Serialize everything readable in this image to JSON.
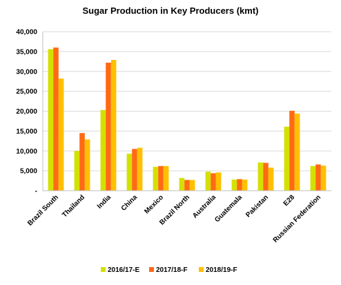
{
  "chart_data": {
    "type": "bar",
    "title": "Sugar Production in Key Producers (kmt)",
    "xlabel": "",
    "ylabel": "",
    "ylim": [
      0,
      40000
    ],
    "y_ticks": [
      "-",
      "5,000",
      "10,000",
      "15,000",
      "20,000",
      "25,000",
      "30,000",
      "35,000",
      "40,000"
    ],
    "categories": [
      "Brazil South",
      "Thailand",
      "India",
      "China",
      "Mexico",
      "Brazil North",
      "Australia",
      "Guatemala",
      "Pakistan",
      "E28",
      "Russian Federation"
    ],
    "series": [
      {
        "name": "2016/17-E",
        "color": "#d4e000",
        "values": [
          35600,
          10000,
          20300,
          9300,
          6000,
          3200,
          4800,
          2800,
          7100,
          16100,
          6200
        ]
      },
      {
        "name": "2017/18-F",
        "color": "#ff6a13",
        "values": [
          36000,
          14500,
          32200,
          10500,
          6200,
          2700,
          4400,
          2900,
          7000,
          20100,
          6600
        ]
      },
      {
        "name": "2018/19-F",
        "color": "#ffc000",
        "values": [
          28200,
          12900,
          32900,
          10800,
          6200,
          2700,
          4600,
          2800,
          5800,
          19400,
          6300
        ]
      }
    ],
    "grid": true,
    "legend_position": "bottom"
  }
}
